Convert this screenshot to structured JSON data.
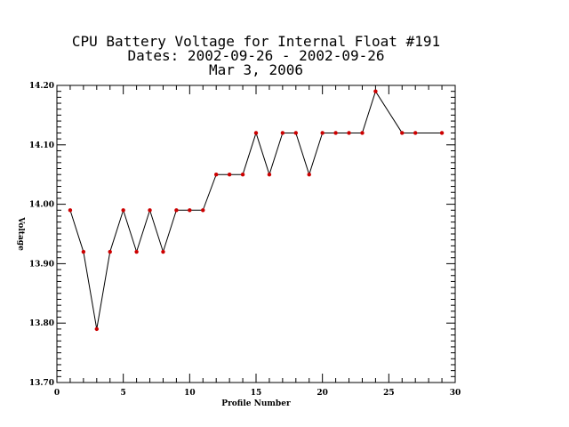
{
  "chart_data": {
    "type": "line",
    "title_lines": [
      "CPU Battery Voltage for Internal Float #191",
      "Dates:  2002-09-26 -  2002-09-26",
      "Mar  3, 2006"
    ],
    "xlabel": "Profile Number",
    "ylabel": "Voltage",
    "xlim": [
      0,
      30
    ],
    "ylim": [
      13.7,
      14.2
    ],
    "x_ticks": [
      0,
      5,
      10,
      15,
      20,
      25,
      30
    ],
    "y_ticks": [
      13.7,
      13.8,
      13.9,
      14.0,
      14.1,
      14.2
    ],
    "y_tick_labels": [
      "13.70",
      "13.80",
      "13.90",
      "14.00",
      "14.10",
      "14.20"
    ],
    "x_minor_step": 1,
    "y_minor_step": 0.01,
    "grid": false,
    "line_color": "#000000",
    "marker_color": "#cc0000",
    "series": [
      {
        "x": [
          1,
          2,
          3,
          4,
          5,
          6,
          7,
          8,
          9,
          10,
          11,
          12,
          13,
          14,
          15,
          16,
          17,
          18,
          19,
          20,
          21,
          22,
          23,
          24,
          26,
          27,
          29
        ],
        "values": [
          13.99,
          13.92,
          13.79,
          13.92,
          13.99,
          13.92,
          13.99,
          13.92,
          13.99,
          13.99,
          13.99,
          14.05,
          14.05,
          14.05,
          14.12,
          14.05,
          14.12,
          14.12,
          14.05,
          14.12,
          14.12,
          14.12,
          14.12,
          14.19,
          14.12,
          14.12,
          14.12
        ]
      }
    ]
  }
}
